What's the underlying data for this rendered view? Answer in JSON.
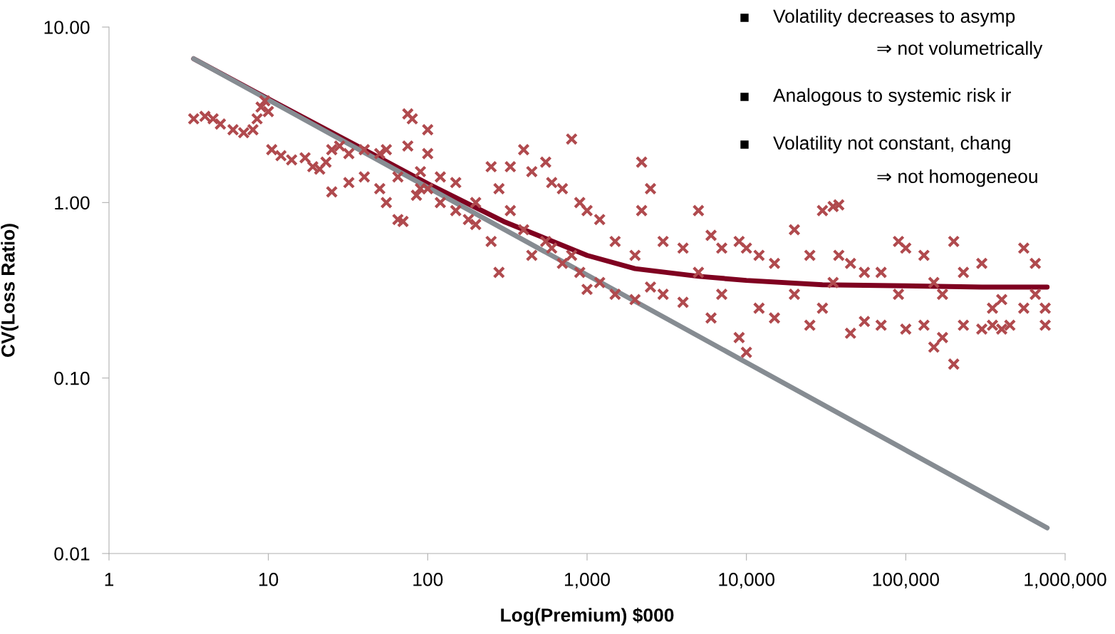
{
  "chart_data": {
    "type": "scatter",
    "xlabel": "Log(Premium) $000",
    "ylabel": "CV(Loss Ratio)",
    "log": "xy",
    "grid": false,
    "legend": false,
    "xlim": [
      1,
      1000000
    ],
    "ylim": [
      0.01,
      10
    ],
    "xticks": [
      1,
      10,
      100,
      {
        "value": 1000,
        "label": "1,000"
      },
      {
        "value": 10000,
        "label": "10,000"
      },
      {
        "value": 100000,
        "label": "100,000"
      },
      {
        "value": 1000000,
        "label": "1,000,000"
      }
    ],
    "yticks": [
      {
        "value": 0.01,
        "label": "0.01"
      },
      {
        "value": 0.1,
        "label": "0.10"
      },
      {
        "value": 1,
        "label": "1.00"
      },
      {
        "value": 10,
        "label": "10.00"
      }
    ],
    "annotations": [
      "Volatility decreases to asymp",
      "⇒ not volumetrically",
      "Analogous to systemic risk ir",
      "Volatility not constant, chang",
      "⇒ not homogeneou"
    ],
    "series": [
      {
        "marker": "cross",
        "color": "#b04a4e",
        "x": [
          3.4,
          4,
          4.5,
          5,
          6,
          7,
          8,
          8.5,
          9,
          9.5,
          10,
          10.5,
          12,
          14,
          17,
          19,
          21,
          23,
          25,
          25,
          28,
          32,
          32,
          40,
          40,
          50,
          50,
          55,
          55,
          65,
          65,
          70,
          75,
          75,
          80,
          85,
          90,
          90,
          100,
          100,
          100,
          120,
          120,
          150,
          150,
          180,
          200,
          200,
          250,
          250,
          280,
          280,
          330,
          330,
          400,
          400,
          450,
          450,
          550,
          550,
          600,
          600,
          700,
          700,
          800,
          800,
          900,
          900,
          1000,
          1000,
          1200,
          1200,
          1500,
          1500,
          2000,
          2000,
          2200,
          2200,
          2500,
          2500,
          3000,
          3000,
          4000,
          4000,
          5000,
          5000,
          6000,
          6000,
          7000,
          7000,
          9000,
          9000,
          10000,
          10000,
          12000,
          12000,
          15000,
          15000,
          20000,
          20000,
          25000,
          25000,
          30000,
          30000,
          35000,
          35000,
          38000,
          38000,
          45000,
          45000,
          55000,
          55000,
          70000,
          70000,
          90000,
          90000,
          100000,
          100000,
          130000,
          130000,
          150000,
          150000,
          170000,
          170000,
          200000,
          200000,
          230000,
          230000,
          300000,
          300000,
          350000,
          350000,
          400000,
          400000,
          450000,
          550000,
          550000,
          650000,
          650000,
          750000,
          750000
        ],
        "values": [
          3.0,
          3.1,
          3.0,
          2.8,
          2.6,
          2.5,
          2.6,
          3.0,
          3.5,
          3.8,
          3.3,
          2.0,
          1.85,
          1.75,
          1.8,
          1.6,
          1.55,
          1.7,
          2.0,
          1.15,
          2.1,
          1.9,
          1.3,
          2.0,
          1.4,
          1.9,
          1.2,
          2.0,
          1.0,
          1.4,
          0.8,
          0.78,
          3.2,
          2.1,
          3.0,
          1.1,
          1.5,
          1.2,
          2.6,
          1.9,
          1.2,
          1.4,
          1.0,
          1.3,
          0.9,
          0.8,
          0.75,
          1.0,
          1.6,
          0.6,
          0.4,
          1.2,
          1.6,
          0.9,
          2.0,
          0.7,
          1.5,
          0.5,
          1.7,
          0.6,
          1.3,
          0.55,
          1.2,
          0.45,
          2.3,
          0.5,
          1.0,
          0.4,
          0.9,
          0.32,
          0.8,
          0.35,
          0.6,
          0.3,
          0.5,
          0.28,
          1.7,
          0.9,
          1.2,
          0.33,
          0.6,
          0.3,
          0.55,
          0.27,
          0.9,
          0.4,
          0.65,
          0.22,
          0.55,
          0.3,
          0.6,
          0.17,
          0.55,
          0.14,
          0.5,
          0.25,
          0.45,
          0.22,
          0.7,
          0.3,
          0.5,
          0.2,
          0.9,
          0.25,
          0.95,
          0.35,
          0.97,
          0.5,
          0.45,
          0.18,
          0.4,
          0.21,
          0.4,
          0.2,
          0.6,
          0.3,
          0.55,
          0.19,
          0.5,
          0.2,
          0.35,
          0.15,
          0.3,
          0.17,
          0.6,
          0.12,
          0.4,
          0.2,
          0.45,
          0.19,
          0.25,
          0.2,
          0.28,
          0.19,
          0.2,
          0.55,
          0.25,
          0.45,
          0.3,
          0.25,
          0.2
        ]
      },
      {
        "type": "line",
        "color": "#7f0020",
        "x": [
          3.4,
          10,
          30,
          100,
          300,
          1000,
          2000,
          5000,
          10000,
          30000,
          100000,
          300000,
          771000
        ],
        "values": [
          6.6,
          3.9,
          2.3,
          1.28,
          0.78,
          0.5,
          0.42,
          0.38,
          0.36,
          0.34,
          0.335,
          0.33,
          0.33
        ]
      },
      {
        "type": "line",
        "color": "#868c92",
        "x": [
          3.4,
          771000
        ],
        "values": [
          6.6,
          0.014
        ]
      }
    ]
  }
}
